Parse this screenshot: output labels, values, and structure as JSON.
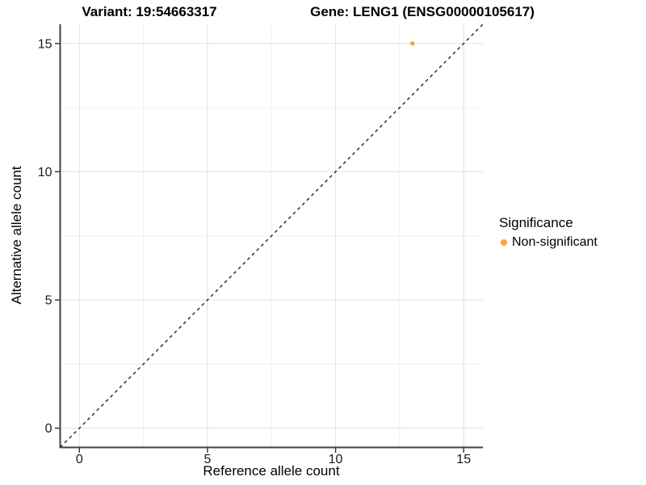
{
  "titles": {
    "variant": "Variant: 19:54663317",
    "gene": "Gene: LENG1 (ENSG00000105617)"
  },
  "legend": {
    "title": "Significance",
    "items": [
      {
        "label": "Non-significant",
        "color": "#FAA43A",
        "marker": "circle-icon"
      }
    ]
  },
  "colors": {
    "non_significant": "#FAA43A",
    "grid_major": "#e2e2e2",
    "grid_minor": "#f0f0f0",
    "axis_line": "#404040",
    "tick_mark": "#333333",
    "reference_line": "#000000",
    "text": "#1a1a1a",
    "background": "#ffffff"
  },
  "chart_data": {
    "type": "scatter",
    "title": "",
    "xlabel": "Reference allele count",
    "ylabel": "Alternative allele count",
    "xlim": [
      -0.75,
      15.75
    ],
    "ylim": [
      -0.75,
      15.75
    ],
    "x_ticks": [
      0,
      5,
      10,
      15
    ],
    "y_ticks": [
      0,
      5,
      10,
      15
    ],
    "x_minor_ticks": [
      2.5,
      7.5,
      12.5
    ],
    "y_minor_ticks": [
      2.5,
      7.5,
      12.5
    ],
    "grid": true,
    "legend_position": "right",
    "points": [
      {
        "x": 13,
        "y": 15,
        "series": "Non-significant",
        "color": "#FAA43A",
        "radius": 2.8
      }
    ],
    "reference_line": {
      "style": "dashed",
      "slope": 1,
      "intercept": 0,
      "dash": "4 4",
      "width": 1.2
    }
  }
}
